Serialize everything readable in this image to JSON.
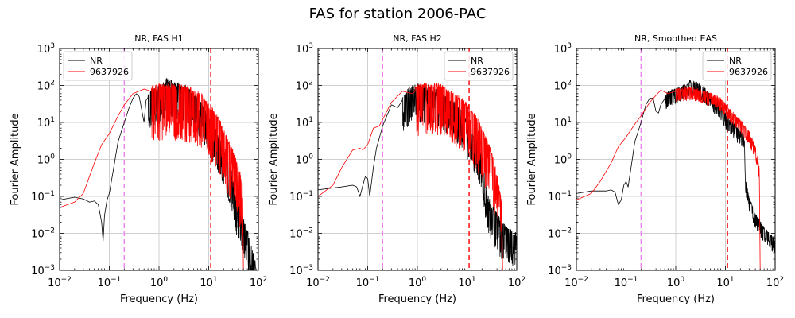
{
  "suptitle": "FAS for station 2006-PAC",
  "chart_data": [
    {
      "type": "line",
      "title": "NR, FAS H1",
      "xlabel": "Frequency (Hz)",
      "ylabel": "Fourier Amplitude",
      "xscale": "log",
      "yscale": "log",
      "xlim": [
        0.01,
        100
      ],
      "ylim": [
        0.001,
        1000
      ],
      "xticks": [
        "10^-2",
        "10^-1",
        "10^0",
        "10^1",
        "10^2"
      ],
      "yticks": [
        "10^-3",
        "10^-2",
        "10^-1",
        "10^0",
        "10^1",
        "10^2",
        "10^3"
      ],
      "grid": true,
      "legend": {
        "position": "top-left",
        "entries": [
          "NR",
          "9637926"
        ]
      },
      "vlines": [
        {
          "x": 0.2,
          "color": "#ee82ee",
          "style": "dashed"
        },
        {
          "x": 11,
          "color": "#ff0000",
          "style": "dashed"
        }
      ],
      "series": [
        {
          "name": "NR",
          "color": "#000000",
          "noisy_from": 0.6,
          "noise": 0.9,
          "points": [
            [
              0.01,
              0.08
            ],
            [
              0.02,
              0.095
            ],
            [
              0.03,
              0.085
            ],
            [
              0.04,
              0.07
            ],
            [
              0.05,
              0.075
            ],
            [
              0.06,
              0.06
            ],
            [
              0.07,
              0.02
            ],
            [
              0.075,
              0.006
            ],
            [
              0.08,
              0.03
            ],
            [
              0.09,
              0.08
            ],
            [
              0.1,
              0.12
            ],
            [
              0.12,
              0.5
            ],
            [
              0.15,
              3
            ],
            [
              0.2,
              10
            ],
            [
              0.25,
              25
            ],
            [
              0.3,
              45
            ],
            [
              0.35,
              60
            ],
            [
              0.4,
              50
            ],
            [
              0.5,
              10
            ],
            [
              0.55,
              40
            ],
            [
              0.7,
              60
            ],
            [
              1,
              70
            ],
            [
              1.5,
              120
            ],
            [
              2,
              90
            ],
            [
              3,
              80
            ],
            [
              5,
              50
            ],
            [
              8,
              20
            ],
            [
              10,
              10
            ],
            [
              15,
              4
            ],
            [
              20,
              1.5
            ],
            [
              30,
              0.3
            ],
            [
              35,
              0.08
            ],
            [
              40,
              0.05
            ],
            [
              50,
              0.02
            ],
            [
              70,
              0.005
            ],
            [
              90,
              0.001
            ]
          ]
        },
        {
          "name": "9637926",
          "color": "#ff0000",
          "noisy_from": 0.7,
          "noise": 1.4,
          "points": [
            [
              0.01,
              0.05
            ],
            [
              0.02,
              0.07
            ],
            [
              0.03,
              0.12
            ],
            [
              0.05,
              0.8
            ],
            [
              0.07,
              2.5
            ],
            [
              0.1,
              5
            ],
            [
              0.15,
              15
            ],
            [
              0.2,
              30
            ],
            [
              0.3,
              60
            ],
            [
              0.5,
              80
            ],
            [
              0.7,
              70
            ],
            [
              1,
              80
            ],
            [
              2,
              80
            ],
            [
              3,
              75
            ],
            [
              5,
              60
            ],
            [
              8,
              40
            ],
            [
              10,
              25
            ],
            [
              15,
              12
            ],
            [
              20,
              5
            ],
            [
              30,
              1.5
            ],
            [
              40,
              0.5
            ],
            [
              48,
              0.2
            ],
            [
              50,
              0.001
            ]
          ]
        }
      ]
    },
    {
      "type": "line",
      "title": "NR, FAS H2",
      "xlabel": "Frequency (Hz)",
      "ylabel": "Fourier Amplitude",
      "xscale": "log",
      "yscale": "log",
      "xlim": [
        0.01,
        100
      ],
      "ylim": [
        0.001,
        1000
      ],
      "xticks": [
        "10^-2",
        "10^-1",
        "10^0",
        "10^1",
        "10^2"
      ],
      "yticks": [
        "10^-3",
        "10^-2",
        "10^-1",
        "10^0",
        "10^1",
        "10^2",
        "10^3"
      ],
      "grid": true,
      "legend": {
        "position": "top-right",
        "entries": [
          "NR",
          "9637926"
        ]
      },
      "vlines": [
        {
          "x": 0.2,
          "color": "#ee82ee",
          "style": "dashed"
        },
        {
          "x": 11,
          "color": "#ff0000",
          "style": "dashed"
        }
      ],
      "series": [
        {
          "name": "NR",
          "color": "#000000",
          "noisy_from": 0.5,
          "noise": 0.9,
          "points": [
            [
              0.01,
              0.15
            ],
            [
              0.03,
              0.18
            ],
            [
              0.05,
              0.2
            ],
            [
              0.06,
              0.18
            ],
            [
              0.07,
              0.1
            ],
            [
              0.08,
              0.2
            ],
            [
              0.09,
              0.35
            ],
            [
              0.1,
              0.3
            ],
            [
              0.11,
              0.1
            ],
            [
              0.13,
              0.6
            ],
            [
              0.15,
              2
            ],
            [
              0.2,
              8
            ],
            [
              0.3,
              30
            ],
            [
              0.4,
              25
            ],
            [
              0.5,
              40
            ],
            [
              0.7,
              70
            ],
            [
              1,
              80
            ],
            [
              2,
              70
            ],
            [
              3,
              50
            ],
            [
              5,
              30
            ],
            [
              8,
              15
            ],
            [
              10,
              8
            ],
            [
              15,
              3
            ],
            [
              20,
              1
            ],
            [
              25,
              0.1
            ],
            [
              30,
              0.05
            ],
            [
              50,
              0.015
            ],
            [
              70,
              0.01
            ],
            [
              100,
              0.008
            ]
          ]
        },
        {
          "name": "9637926",
          "color": "#ff0000",
          "noisy_from": 0.9,
          "noise": 1.3,
          "points": [
            [
              0.01,
              0.1
            ],
            [
              0.02,
              0.2
            ],
            [
              0.03,
              0.6
            ],
            [
              0.05,
              1.8
            ],
            [
              0.07,
              2
            ],
            [
              0.08,
              1.8
            ],
            [
              0.1,
              2.5
            ],
            [
              0.13,
              7
            ],
            [
              0.17,
              8
            ],
            [
              0.2,
              12
            ],
            [
              0.3,
              35
            ],
            [
              0.5,
              70
            ],
            [
              0.8,
              60
            ],
            [
              1,
              80
            ],
            [
              2,
              90
            ],
            [
              3,
              80
            ],
            [
              5,
              50
            ],
            [
              8,
              35
            ],
            [
              10,
              25
            ],
            [
              15,
              12
            ],
            [
              20,
              5
            ],
            [
              30,
              1.5
            ],
            [
              40,
              0.3
            ],
            [
              50,
              0.05
            ],
            [
              52,
              0.001
            ]
          ]
        }
      ]
    },
    {
      "type": "line",
      "title": "NR, Smoothed EAS",
      "xlabel": "Frequency (Hz)",
      "ylabel": "Fourier Amplitude",
      "xscale": "log",
      "yscale": "log",
      "xlim": [
        0.01,
        100
      ],
      "ylim": [
        0.001,
        1000
      ],
      "xticks": [
        "10^-2",
        "10^-1",
        "10^0",
        "10^1",
        "10^2"
      ],
      "yticks": [
        "10^-3",
        "10^-2",
        "10^-1",
        "10^0",
        "10^1",
        "10^2",
        "10^3"
      ],
      "grid": true,
      "legend": {
        "position": "top-right",
        "entries": [
          "NR",
          "9637926"
        ]
      },
      "vlines": [
        {
          "x": 0.2,
          "color": "#ee82ee",
          "style": "dashed"
        },
        {
          "x": 11,
          "color": "#ff0000",
          "style": "dashed"
        }
      ],
      "series": [
        {
          "name": "NR",
          "color": "#000000",
          "noisy_from": 0.6,
          "noise": 0.35,
          "points": [
            [
              0.01,
              0.12
            ],
            [
              0.02,
              0.14
            ],
            [
              0.04,
              0.14
            ],
            [
              0.05,
              0.15
            ],
            [
              0.06,
              0.13
            ],
            [
              0.07,
              0.06
            ],
            [
              0.08,
              0.08
            ],
            [
              0.09,
              0.2
            ],
            [
              0.1,
              0.25
            ],
            [
              0.11,
              0.18
            ],
            [
              0.13,
              0.8
            ],
            [
              0.15,
              3
            ],
            [
              0.2,
              10
            ],
            [
              0.25,
              30
            ],
            [
              0.3,
              45
            ],
            [
              0.35,
              45
            ],
            [
              0.4,
              20
            ],
            [
              0.45,
              18
            ],
            [
              0.5,
              30
            ],
            [
              0.7,
              60
            ],
            [
              1,
              70
            ],
            [
              1.5,
              90
            ],
            [
              2,
              120
            ],
            [
              3,
              100
            ],
            [
              5,
              50
            ],
            [
              8,
              25
            ],
            [
              10,
              15
            ],
            [
              15,
              8
            ],
            [
              20,
              5
            ],
            [
              24,
              4
            ],
            [
              25,
              0.3
            ],
            [
              30,
              0.08
            ],
            [
              40,
              0.03
            ],
            [
              60,
              0.012
            ],
            [
              100,
              0.006
            ]
          ]
        },
        {
          "name": "9637926",
          "color": "#ff0000",
          "noisy_from": 1.0,
          "noise": 0.3,
          "points": [
            [
              0.01,
              0.08
            ],
            [
              0.02,
              0.12
            ],
            [
              0.03,
              0.25
            ],
            [
              0.05,
              0.8
            ],
            [
              0.07,
              2.2
            ],
            [
              0.1,
              4
            ],
            [
              0.15,
              9
            ],
            [
              0.2,
              15
            ],
            [
              0.3,
              35
            ],
            [
              0.5,
              75
            ],
            [
              0.7,
              60
            ],
            [
              1,
              70
            ],
            [
              2,
              80
            ],
            [
              3,
              70
            ],
            [
              5,
              55
            ],
            [
              8,
              40
            ],
            [
              10,
              28
            ],
            [
              15,
              15
            ],
            [
              20,
              10
            ],
            [
              30,
              5
            ],
            [
              40,
              2
            ],
            [
              45,
              1
            ],
            [
              48,
              0.5
            ],
            [
              50,
              0.001
            ]
          ]
        }
      ]
    }
  ]
}
